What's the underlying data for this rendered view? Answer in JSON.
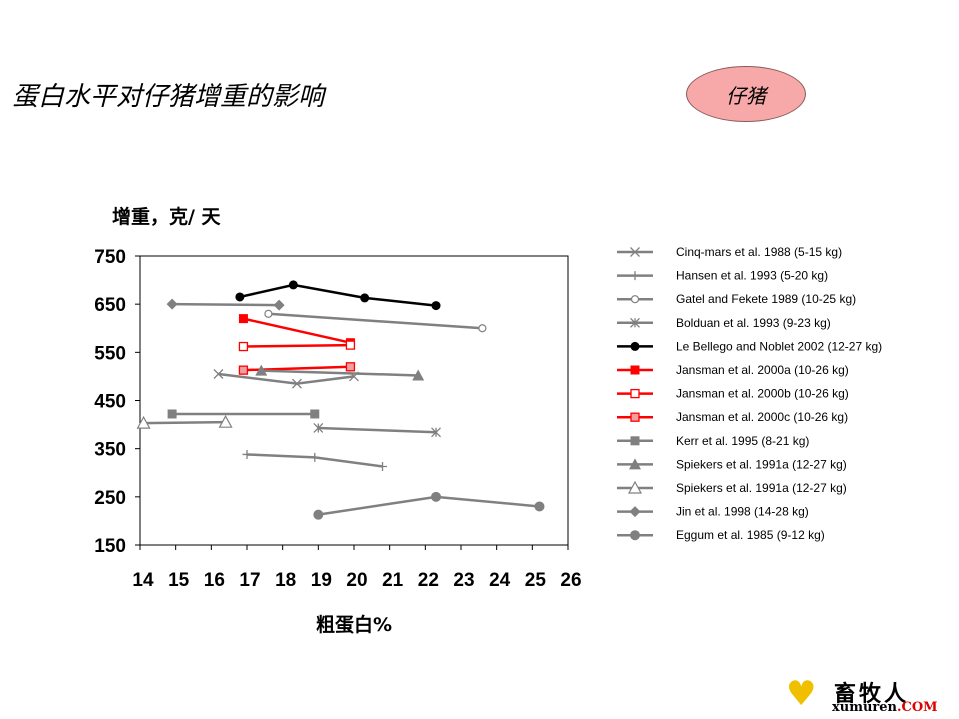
{
  "page": {
    "title": "蛋白水平对仔猪增重的影响",
    "badge": "仔猪",
    "logo": {
      "cn": "畜牧人",
      "en_main": "xumuren",
      "en_com": ".COM"
    }
  },
  "chart_data": {
    "type": "line",
    "title": "",
    "xlabel": "粗蛋白%",
    "ylabel": "增重，克/ 天",
    "xlim": [
      14,
      26
    ],
    "ylim": [
      150,
      750
    ],
    "xticks": [
      "14",
      "15",
      "16",
      "17",
      "18",
      "19",
      "20",
      "21",
      "22",
      "23",
      "24",
      "25",
      "26"
    ],
    "yticks": [
      "750",
      "650",
      "550",
      "450",
      "350",
      "250",
      "150"
    ],
    "grid": false,
    "legend_position": "right",
    "series": [
      {
        "name": "Cinq-mars et al. 1988 (5-15 kg)",
        "color": "#808080",
        "marker": "x",
        "points": [
          [
            16.2,
            505
          ],
          [
            18.4,
            485
          ],
          [
            20.0,
            500
          ]
        ]
      },
      {
        "name": "Hansen et al. 1993 (5-20 kg)",
        "color": "#808080",
        "marker": "plus",
        "points": [
          [
            17.0,
            338
          ],
          [
            18.9,
            332
          ],
          [
            20.8,
            313
          ]
        ]
      },
      {
        "name": "Gatel and Fekete 1989 (10-25 kg)",
        "color": "#808080",
        "marker": "circle-open",
        "points": [
          [
            17.6,
            630
          ],
          [
            23.6,
            600
          ]
        ]
      },
      {
        "name": "Bolduan et al. 1993 (9-23 kg)",
        "color": "#808080",
        "marker": "star",
        "points": [
          [
            19.0,
            393
          ],
          [
            22.3,
            384
          ]
        ]
      },
      {
        "name": "Le Bellego and Noblet 2002 (12-27 kg)",
        "color": "#000000",
        "marker": "circle-filled",
        "points": [
          [
            16.8,
            665
          ],
          [
            18.3,
            690
          ],
          [
            20.3,
            663
          ],
          [
            22.3,
            647
          ]
        ]
      },
      {
        "name": "Jansman et al. 2000a (10-26 kg)",
        "color": "#ff0000",
        "marker": "square-filled",
        "points": [
          [
            16.9,
            620
          ],
          [
            19.9,
            570
          ]
        ]
      },
      {
        "name": "Jansman et al. 2000b (10-26 kg)",
        "color": "#ff0000",
        "marker": "square-open",
        "points": [
          [
            16.9,
            562
          ],
          [
            19.9,
            565
          ]
        ]
      },
      {
        "name": "Jansman et al. 2000c (10-26 kg)",
        "color": "#ff0000",
        "marker": "square-pink",
        "points": [
          [
            16.9,
            513
          ],
          [
            19.9,
            520
          ]
        ]
      },
      {
        "name": "Kerr et al. 1995 (8-21 kg)",
        "color": "#808080",
        "marker": "square-gray",
        "points": [
          [
            14.9,
            422
          ],
          [
            18.9,
            422
          ]
        ]
      },
      {
        "name": "Spiekers et al. 1991a (12-27 kg)",
        "color": "#808080",
        "marker": "triangle-filled",
        "points": [
          [
            17.4,
            512
          ],
          [
            21.8,
            502
          ]
        ]
      },
      {
        "name": "Spiekers et al. 1991a (12-27 kg)",
        "color": "#808080",
        "marker": "triangle-open",
        "points": [
          [
            14.1,
            403
          ],
          [
            16.4,
            405
          ]
        ]
      },
      {
        "name": "Jin et al. 1998 (14-28 kg)",
        "color": "#808080",
        "marker": "diamond",
        "points": [
          [
            14.9,
            650
          ],
          [
            17.9,
            648
          ]
        ]
      },
      {
        "name": "Eggum et al. 1985 (9-12 kg)",
        "color": "#808080",
        "marker": "circle-gray",
        "points": [
          [
            19.0,
            213
          ],
          [
            22.3,
            250
          ],
          [
            25.2,
            230
          ]
        ]
      }
    ]
  }
}
